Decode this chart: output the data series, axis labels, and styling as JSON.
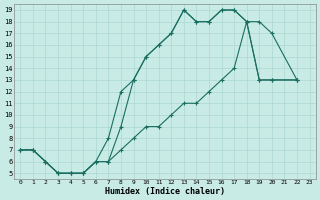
{
  "xlabel": "Humidex (Indice chaleur)",
  "bg_color": "#c8ebe6",
  "grid_color": "#aad8d0",
  "line_color": "#1a6e60",
  "curve1_x": [
    0,
    1,
    2,
    3,
    4,
    5,
    6,
    7,
    8,
    9,
    10,
    11,
    12,
    13,
    14,
    15,
    16,
    17,
    18,
    19,
    20,
    22
  ],
  "curve1_y": [
    7,
    7,
    6,
    5,
    5,
    5,
    6,
    6,
    9,
    13,
    15,
    16,
    17,
    19,
    18,
    18,
    19,
    19,
    18,
    18,
    17,
    13
  ],
  "curve2_x": [
    0,
    1,
    2,
    3,
    4,
    5,
    6,
    7,
    8,
    9,
    10,
    11,
    12,
    13,
    14,
    15,
    16,
    17,
    18,
    19,
    20,
    22
  ],
  "curve2_y": [
    7,
    7,
    6,
    5,
    5,
    5,
    6,
    8,
    12,
    13,
    15,
    16,
    17,
    19,
    18,
    18,
    19,
    19,
    18,
    13,
    13,
    13
  ],
  "curve3_x": [
    0,
    1,
    2,
    3,
    4,
    5,
    6,
    7,
    8,
    9,
    10,
    11,
    12,
    13,
    14,
    15,
    16,
    17,
    18,
    19,
    20,
    22
  ],
  "curve3_y": [
    7,
    7,
    6,
    5,
    5,
    5,
    6,
    6,
    7,
    8,
    9,
    9,
    10,
    11,
    11,
    12,
    13,
    14,
    18,
    13,
    13,
    13
  ],
  "xlim": [
    -0.5,
    23.5
  ],
  "ylim": [
    4.5,
    19.5
  ],
  "xticks": [
    0,
    1,
    2,
    3,
    4,
    5,
    6,
    7,
    8,
    9,
    10,
    11,
    12,
    13,
    14,
    15,
    16,
    17,
    18,
    19,
    20,
    21,
    22,
    23
  ],
  "yticks": [
    5,
    6,
    7,
    8,
    9,
    10,
    11,
    12,
    13,
    14,
    15,
    16,
    17,
    18,
    19
  ]
}
